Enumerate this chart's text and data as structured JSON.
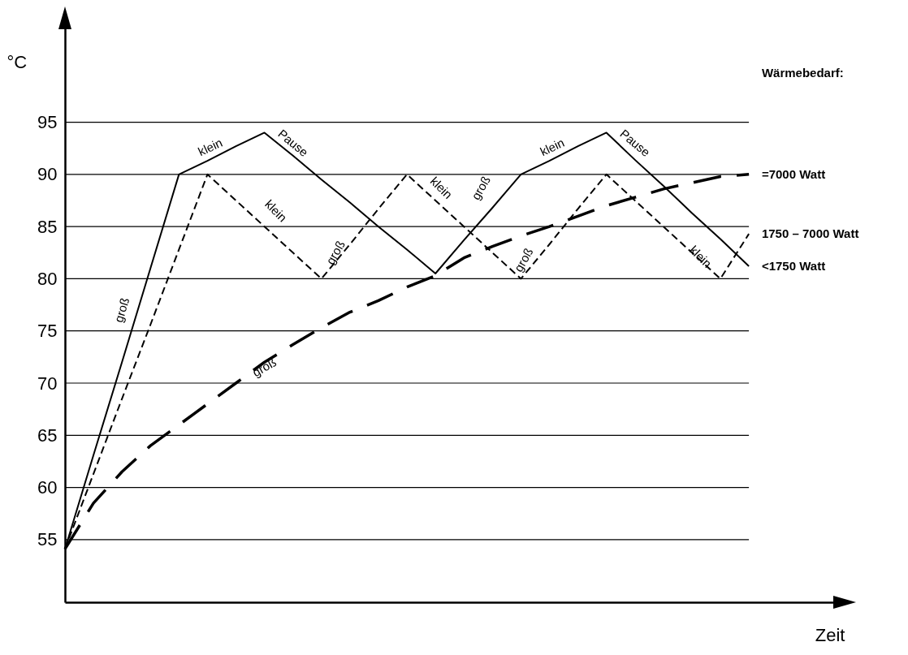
{
  "chart_data": {
    "type": "line",
    "xlabel": "Zeit",
    "ylabel": "°C",
    "legend_title": "Wärmebedarf:",
    "categories": [
      null,
      null,
      null,
      null,
      null,
      null,
      null,
      null,
      null,
      null,
      null,
      null,
      null,
      null,
      null,
      null,
      null,
      null,
      null,
      null,
      null,
      null,
      null,
      null,
      null
    ],
    "series": [
      {
        "name": "<1750 Watt",
        "color": "#000000",
        "line_style": "solid",
        "values": [
          54.1,
          63.1,
          72.0,
          81.0,
          90,
          91.3,
          92.7,
          94,
          91.8,
          89.5,
          87.3,
          85.0,
          82.8,
          80.5,
          83.7,
          86.8,
          90,
          91.3,
          92.7,
          94,
          91.4,
          88.9,
          86.3,
          83.8,
          81.2
        ]
      },
      {
        "name": "1750 – 7000 Watt",
        "color": "#000000",
        "line_style": "dashed",
        "values": [
          54.1,
          61.3,
          68.5,
          75.6,
          82.8,
          90,
          87.5,
          85,
          82.5,
          80,
          83.3,
          86.7,
          90,
          87.5,
          85,
          82.5,
          80,
          83.3,
          86.7,
          90,
          87.5,
          85,
          82.5,
          80,
          84.3
        ]
      },
      {
        "name": "=7000 Watt",
        "color": "#000000",
        "line_style": "dashed",
        "values": [
          54.1,
          58.5,
          61.5,
          64,
          66,
          68,
          70,
          72,
          73.7,
          75.3,
          76.8,
          77.9,
          79.2,
          80.3,
          82,
          83.1,
          84.1,
          85,
          86,
          87,
          87.8,
          88.6,
          89.2,
          89.8,
          90
        ]
      }
    ],
    "annotations": [
      "groß",
      "klein",
      "Pause",
      "klein",
      "groß",
      "groß",
      "klein",
      "groß",
      "groß",
      "klein",
      "Pause",
      "klein"
    ],
    "ylim": [
      49,
      105
    ],
    "yticks": [
      55,
      60,
      65,
      70,
      75,
      80,
      85,
      90,
      95
    ],
    "grid": "y",
    "tick_labels": "y",
    "marker": "none"
  }
}
